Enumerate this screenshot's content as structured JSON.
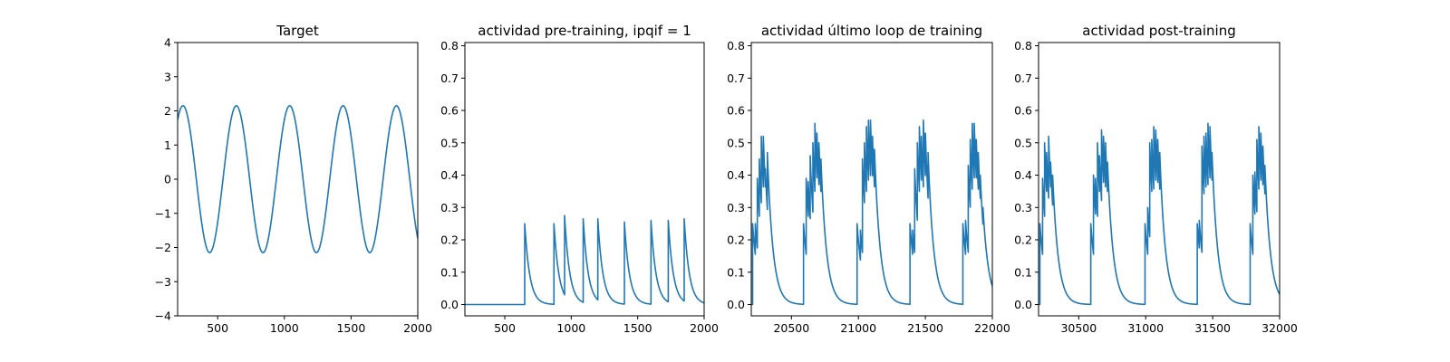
{
  "chart_data": [
    {
      "type": "line",
      "title": "Target",
      "xlabel": "",
      "ylabel": "",
      "xlim": [
        200,
        2000
      ],
      "ylim": [
        -4,
        4
      ],
      "xticks": [
        500,
        1000,
        1500,
        2000
      ],
      "yticks": [
        -4,
        -3,
        -2,
        -1,
        0,
        1,
        2,
        3,
        4
      ],
      "grid": false,
      "series": [
        {
          "kind": "sine",
          "amplitude": 2.15,
          "period": 400,
          "peak_x": [
            240,
            640,
            1040,
            1440,
            1840
          ],
          "trough_x": [
            440,
            840,
            1240,
            1640
          ],
          "x_end_value": -1.65
        }
      ]
    },
    {
      "type": "line",
      "title": "actividad pre-training, ipqif = 1",
      "xlabel": "",
      "ylabel": "",
      "xlim": [
        200,
        2000
      ],
      "ylim": [
        -0.035,
        0.81
      ],
      "xticks": [
        500,
        1000,
        1500,
        2000
      ],
      "yticks": [
        0.0,
        0.1,
        0.2,
        0.3,
        0.4,
        0.5,
        0.6,
        0.7,
        0.8
      ],
      "grid": false,
      "series": [
        {
          "kind": "spike-decay",
          "baseline": 0,
          "decay_tau": 38,
          "spikes": [
            [
              650,
              0.25
            ],
            [
              870,
              0.25
            ],
            [
              950,
              0.275
            ],
            [
              1090,
              0.265
            ],
            [
              1200,
              0.265
            ],
            [
              1400,
              0.255
            ],
            [
              1600,
              0.26
            ],
            [
              1730,
              0.26
            ],
            [
              1850,
              0.265
            ]
          ]
        }
      ]
    },
    {
      "type": "line",
      "title": "actividad último loop de training",
      "xlabel": "",
      "ylabel": "",
      "xlim": [
        20200,
        22000
      ],
      "ylim": [
        -0.035,
        0.81
      ],
      "xticks": [
        20500,
        21000,
        21500,
        22000
      ],
      "yticks": [
        0.0,
        0.1,
        0.2,
        0.3,
        0.4,
        0.5,
        0.6,
        0.7,
        0.8
      ],
      "grid": false,
      "series": [
        {
          "kind": "spike-decay",
          "baseline": 0,
          "decay_tau": 42,
          "spikes": [
            [
              20210,
              0.25
            ],
            [
              20230,
              0.25
            ],
            [
              20245,
              0.39
            ],
            [
              20260,
              0.45
            ],
            [
              20275,
              0.52
            ],
            [
              20290,
              0.52
            ],
            [
              20305,
              0.42
            ],
            [
              20320,
              0.47
            ],
            [
              20590,
              0.25
            ],
            [
              20610,
              0.39
            ],
            [
              20625,
              0.38
            ],
            [
              20640,
              0.46
            ],
            [
              20660,
              0.5
            ],
            [
              20675,
              0.56
            ],
            [
              20690,
              0.53
            ],
            [
              20705,
              0.5
            ],
            [
              20720,
              0.45
            ],
            [
              20990,
              0.25
            ],
            [
              21015,
              0.23
            ],
            [
              21030,
              0.45
            ],
            [
              21045,
              0.5
            ],
            [
              21060,
              0.55
            ],
            [
              21075,
              0.57
            ],
            [
              21090,
              0.57
            ],
            [
              21105,
              0.52
            ],
            [
              21120,
              0.48
            ],
            [
              21385,
              0.25
            ],
            [
              21405,
              0.23
            ],
            [
              21420,
              0.42
            ],
            [
              21440,
              0.5
            ],
            [
              21455,
              0.55
            ],
            [
              21470,
              0.52
            ],
            [
              21485,
              0.57
            ],
            [
              21500,
              0.53
            ],
            [
              21520,
              0.47
            ],
            [
              21780,
              0.25
            ],
            [
              21800,
              0.26
            ],
            [
              21820,
              0.43
            ],
            [
              21835,
              0.51
            ],
            [
              21850,
              0.56
            ],
            [
              21865,
              0.56
            ],
            [
              21880,
              0.51
            ],
            [
              21895,
              0.47
            ],
            [
              21910,
              0.4
            ],
            [
              21930,
              0.3
            ]
          ]
        }
      ]
    },
    {
      "type": "line",
      "title": "actividad post-training",
      "xlabel": "",
      "ylabel": "",
      "xlim": [
        30200,
        32000
      ],
      "ylim": [
        -0.035,
        0.81
      ],
      "xticks": [
        30500,
        31000,
        31500,
        32000
      ],
      "yticks": [
        0.0,
        0.1,
        0.2,
        0.3,
        0.4,
        0.5,
        0.6,
        0.7,
        0.8
      ],
      "grid": false,
      "series": [
        {
          "kind": "spike-decay",
          "baseline": 0,
          "decay_tau": 42,
          "spikes": [
            [
              30210,
              0.25
            ],
            [
              30230,
              0.39
            ],
            [
              30245,
              0.5
            ],
            [
              30260,
              0.47
            ],
            [
              30275,
              0.52
            ],
            [
              30290,
              0.44
            ],
            [
              30305,
              0.4
            ],
            [
              30590,
              0.25
            ],
            [
              30610,
              0.4
            ],
            [
              30625,
              0.39
            ],
            [
              30640,
              0.5
            ],
            [
              30655,
              0.46
            ],
            [
              30670,
              0.54
            ],
            [
              30685,
              0.52
            ],
            [
              30700,
              0.5
            ],
            [
              30715,
              0.44
            ],
            [
              30995,
              0.25
            ],
            [
              31015,
              0.3
            ],
            [
              31030,
              0.5
            ],
            [
              31045,
              0.51
            ],
            [
              31060,
              0.55
            ],
            [
              31075,
              0.54
            ],
            [
              31090,
              0.51
            ],
            [
              31105,
              0.47
            ],
            [
              31385,
              0.25
            ],
            [
              31400,
              0.26
            ],
            [
              31420,
              0.49
            ],
            [
              31435,
              0.52
            ],
            [
              31450,
              0.53
            ],
            [
              31465,
              0.56
            ],
            [
              31480,
              0.55
            ],
            [
              31495,
              0.47
            ],
            [
              31780,
              0.25
            ],
            [
              31800,
              0.4
            ],
            [
              31815,
              0.41
            ],
            [
              31830,
              0.51
            ],
            [
              31845,
              0.55
            ],
            [
              31860,
              0.53
            ],
            [
              31875,
              0.49
            ],
            [
              31890,
              0.43
            ]
          ]
        }
      ]
    }
  ]
}
